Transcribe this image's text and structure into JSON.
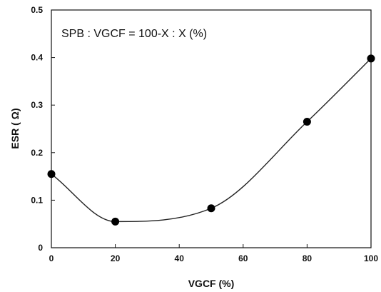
{
  "chart_data": {
    "type": "line",
    "title": "",
    "xlabel": "VGCF (%)",
    "ylabel": "ESR ( Ω)",
    "annotation": "SPB : VGCF = 100-X : X (%)",
    "x": [
      0,
      20,
      50,
      80,
      100
    ],
    "series": [
      {
        "values": [
          0.155,
          0.055,
          0.083,
          0.265,
          0.398
        ]
      }
    ],
    "xlim": [
      0,
      100
    ],
    "ylim": [
      0,
      0.5
    ],
    "x_ticks": [
      0,
      20,
      40,
      60,
      80,
      100
    ],
    "y_ticks": [
      0,
      0.1,
      0.2,
      0.3,
      0.4,
      0.5
    ],
    "x_tick_labels": [
      "0",
      "20",
      "40",
      "60",
      "80",
      "100"
    ],
    "y_tick_labels": [
      "0",
      "0.1",
      "0.2",
      "0.3",
      "0.4",
      "0.5"
    ],
    "grid": false,
    "legend": "none",
    "smooth": true,
    "colors": {
      "line": "#222222",
      "marker": "#000000",
      "frame": "#111111"
    }
  }
}
